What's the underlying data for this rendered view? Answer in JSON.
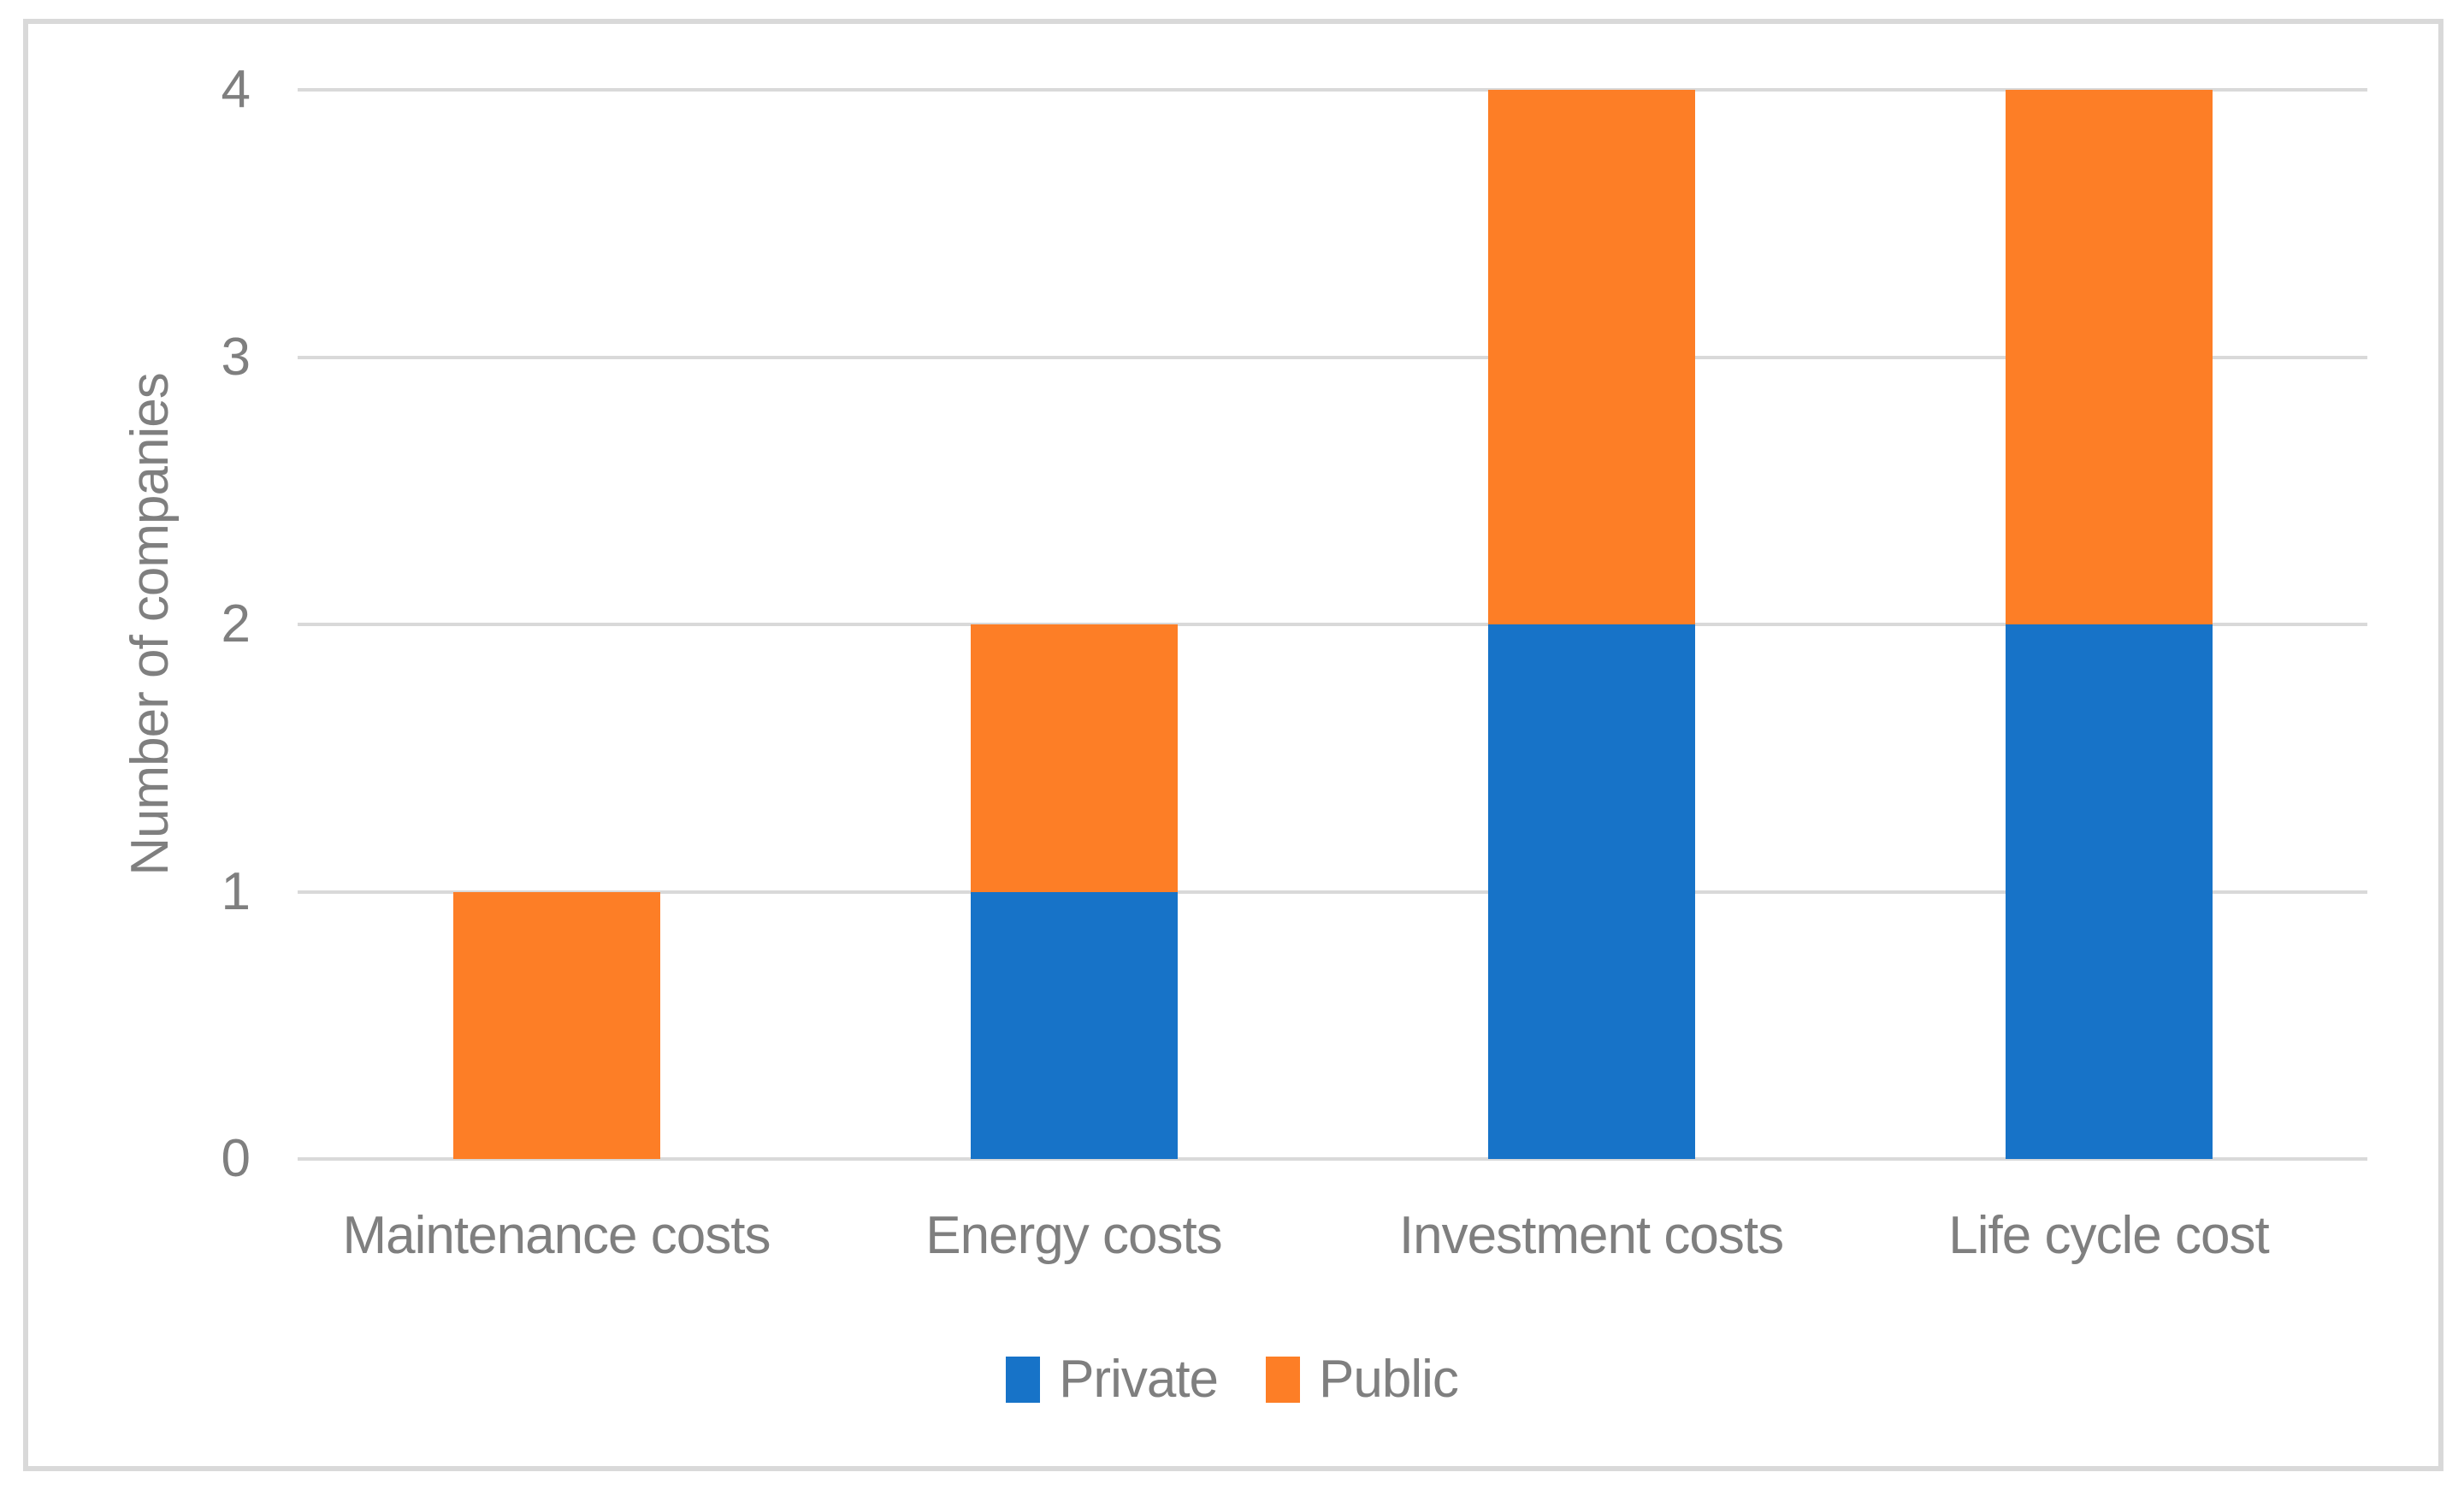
{
  "chart_data": {
    "type": "bar",
    "stacked": true,
    "categories": [
      "Maintenance costs",
      "Energy costs",
      "Investment costs",
      "Life cycle cost"
    ],
    "series": [
      {
        "name": "Private",
        "color": "#1773c8",
        "values": [
          0,
          1,
          2,
          2
        ]
      },
      {
        "name": "Public",
        "color": "#fd7e26",
        "values": [
          1,
          1,
          2,
          2
        ]
      }
    ],
    "xlabel": "",
    "ylabel": "Number of companies",
    "ylim": [
      0,
      4
    ],
    "yticks": [
      0,
      1,
      2,
      3,
      4
    ],
    "grid": "horizontal-only",
    "legend_position": "bottom"
  },
  "colors": {
    "gridline": "#d9d9d9",
    "frame_border": "#d9d9d9",
    "text": "#7f7f7f",
    "background": "#ffffff"
  }
}
